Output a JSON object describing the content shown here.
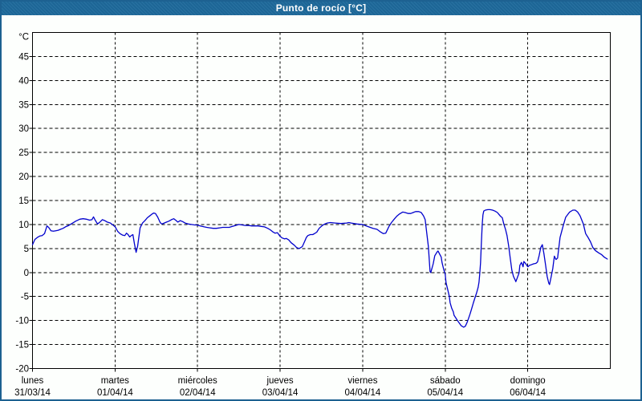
{
  "window": {
    "title": "Punto de rocío [°C]"
  },
  "colors": {
    "frame_border": "#1d6191",
    "titlebar_bg": "#1e6a9c",
    "titlebar_text": "#ffffff",
    "plot_bg": "#fdfffd",
    "grid": "#000000",
    "line": "#0000cd"
  },
  "chart_data": {
    "type": "line",
    "title": "Punto de rocío [°C]",
    "grid": true,
    "legend_position": "none",
    "y_axis": {
      "label": "°C",
      "min": -20,
      "max": 50,
      "tick_step": 5,
      "tick_labels": [
        45,
        40,
        35,
        30,
        25,
        20,
        15,
        10,
        5,
        0,
        -5,
        -10,
        -15,
        -20
      ]
    },
    "x_axis": {
      "unit": "days_from_monday",
      "range": [
        0,
        7
      ],
      "day_ticks": [
        {
          "name": "lunes",
          "date": "31/03/14"
        },
        {
          "name": "martes",
          "date": "01/04/14"
        },
        {
          "name": "miércoles",
          "date": "02/04/14"
        },
        {
          "name": "jueves",
          "date": "03/04/14"
        },
        {
          "name": "viernes",
          "date": "04/04/14"
        },
        {
          "name": "sábado",
          "date": "05/04/14"
        },
        {
          "name": "domingo",
          "date": "06/04/14"
        }
      ]
    },
    "series": [
      {
        "name": "Punto de rocío",
        "color": "#0000cd",
        "points": [
          [
            0,
            5.8
          ],
          [
            0.029,
            6.9
          ],
          [
            0.058,
            7.3
          ],
          [
            0.088,
            7.6
          ],
          [
            0.117,
            7.7
          ],
          [
            0.146,
            8.1
          ],
          [
            0.175,
            9.7
          ],
          [
            0.195,
            9.4
          ],
          [
            0.224,
            8.7
          ],
          [
            0.253,
            8.6
          ],
          [
            0.282,
            8.7
          ],
          [
            0.311,
            8.8
          ],
          [
            0.34,
            9.0
          ],
          [
            0.37,
            9.2
          ],
          [
            0.399,
            9.5
          ],
          [
            0.438,
            9.8
          ],
          [
            0.477,
            10.2
          ],
          [
            0.525,
            10.7
          ],
          [
            0.574,
            11.1
          ],
          [
            0.613,
            11.2
          ],
          [
            0.652,
            11.1
          ],
          [
            0.691,
            10.9
          ],
          [
            0.72,
            11.0
          ],
          [
            0.739,
            11.6
          ],
          [
            0.759,
            10.9
          ],
          [
            0.788,
            10.1
          ],
          [
            0.817,
            10.5
          ],
          [
            0.846,
            11.0
          ],
          [
            0.876,
            10.8
          ],
          [
            0.905,
            10.5
          ],
          [
            0.944,
            10.3
          ],
          [
            0.973,
            9.9
          ],
          [
            1.002,
            9.5
          ],
          [
            1.031,
            8.6
          ],
          [
            1.06,
            8.1
          ],
          [
            1.09,
            7.8
          ],
          [
            1.119,
            7.7
          ],
          [
            1.138,
            8.2
          ],
          [
            1.158,
            7.9
          ],
          [
            1.177,
            7.4
          ],
          [
            1.197,
            7.7
          ],
          [
            1.216,
            7.9
          ],
          [
            1.235,
            6.0
          ],
          [
            1.255,
            4.2
          ],
          [
            1.274,
            5.5
          ],
          [
            1.304,
            9.3
          ],
          [
            1.333,
            10.3
          ],
          [
            1.362,
            10.8
          ],
          [
            1.391,
            11.4
          ],
          [
            1.42,
            11.8
          ],
          [
            1.45,
            12.2
          ],
          [
            1.469,
            12.4
          ],
          [
            1.489,
            12.3
          ],
          [
            1.518,
            11.5
          ],
          [
            1.547,
            10.4
          ],
          [
            1.566,
            10.1
          ],
          [
            1.595,
            10.3
          ],
          [
            1.625,
            10.5
          ],
          [
            1.654,
            10.7
          ],
          [
            1.683,
            11.0
          ],
          [
            1.712,
            11.2
          ],
          [
            1.741,
            10.8
          ],
          [
            1.761,
            10.5
          ],
          [
            1.79,
            10.8
          ],
          [
            1.819,
            10.6
          ],
          [
            1.848,
            10.3
          ],
          [
            1.887,
            10.1
          ],
          [
            1.926,
            10.0
          ],
          [
            1.965,
            9.9
          ],
          [
            1.994,
            9.9
          ],
          [
            2.033,
            9.7
          ],
          [
            2.082,
            9.5
          ],
          [
            2.111,
            9.4
          ],
          [
            2.15,
            9.3
          ],
          [
            2.189,
            9.2
          ],
          [
            2.228,
            9.2
          ],
          [
            2.267,
            9.3
          ],
          [
            2.305,
            9.4
          ],
          [
            2.344,
            9.4
          ],
          [
            2.383,
            9.4
          ],
          [
            2.422,
            9.6
          ],
          [
            2.461,
            9.8
          ],
          [
            2.5,
            10.0
          ],
          [
            2.539,
            9.9
          ],
          [
            2.578,
            9.8
          ],
          [
            2.617,
            9.8
          ],
          [
            2.656,
            9.7
          ],
          [
            2.695,
            9.7
          ],
          [
            2.733,
            9.7
          ],
          [
            2.772,
            9.6
          ],
          [
            2.811,
            9.5
          ],
          [
            2.85,
            9.2
          ],
          [
            2.88,
            8.9
          ],
          [
            2.909,
            8.5
          ],
          [
            2.938,
            8.2
          ],
          [
            2.967,
            8.3
          ],
          [
            2.996,
            7.6
          ],
          [
            3.025,
            7.2
          ],
          [
            3.055,
            7.0
          ],
          [
            3.074,
            7.1
          ],
          [
            3.103,
            6.8
          ],
          [
            3.133,
            6.2
          ],
          [
            3.171,
            5.7
          ],
          [
            3.2,
            5.2
          ],
          [
            3.23,
            5.0
          ],
          [
            3.269,
            5.4
          ],
          [
            3.298,
            6.5
          ],
          [
            3.317,
            7.3
          ],
          [
            3.337,
            7.7
          ],
          [
            3.366,
            7.9
          ],
          [
            3.395,
            7.9
          ],
          [
            3.415,
            8.1
          ],
          [
            3.444,
            8.4
          ],
          [
            3.473,
            9.2
          ],
          [
            3.512,
            9.8
          ],
          [
            3.541,
            10.1
          ],
          [
            3.57,
            10.3
          ],
          [
            3.609,
            10.4
          ],
          [
            3.668,
            10.3
          ],
          [
            3.736,
            10.2
          ],
          [
            3.804,
            10.3
          ],
          [
            3.833,
            10.4
          ],
          [
            3.862,
            10.3
          ],
          [
            3.93,
            10.1
          ],
          [
            3.998,
            10.0
          ],
          [
            4.057,
            9.6
          ],
          [
            4.125,
            9.2
          ],
          [
            4.173,
            9.0
          ],
          [
            4.212,
            8.5
          ],
          [
            4.251,
            8.1
          ],
          [
            4.28,
            8.2
          ],
          [
            4.319,
            9.6
          ],
          [
            4.349,
            10.4
          ],
          [
            4.387,
            11.2
          ],
          [
            4.417,
            11.8
          ],
          [
            4.446,
            12.2
          ],
          [
            4.485,
            12.6
          ],
          [
            4.514,
            12.5
          ],
          [
            4.553,
            12.3
          ],
          [
            4.582,
            12.3
          ],
          [
            4.611,
            12.5
          ],
          [
            4.641,
            12.7
          ],
          [
            4.679,
            12.7
          ],
          [
            4.709,
            12.5
          ],
          [
            4.738,
            11.8
          ],
          [
            4.757,
            11.0
          ],
          [
            4.777,
            8.2
          ],
          [
            4.796,
            5.4
          ],
          [
            4.816,
            0.2
          ],
          [
            4.825,
            0.0
          ],
          [
            4.854,
            1.8
          ],
          [
            4.874,
            3.5
          ],
          [
            4.903,
            4.3
          ],
          [
            4.913,
            4.5
          ],
          [
            4.952,
            3.2
          ],
          [
            4.961,
            2.1
          ],
          [
            4.981,
            0.7
          ],
          [
            5.0,
            -0.4
          ],
          [
            5.01,
            -2.1
          ],
          [
            5.029,
            -3.5
          ],
          [
            5.049,
            -4.9
          ],
          [
            5.059,
            -6.3
          ],
          [
            5.078,
            -7.4
          ],
          [
            5.098,
            -8.2
          ],
          [
            5.107,
            -8.9
          ],
          [
            5.127,
            -9.4
          ],
          [
            5.156,
            -10.2
          ],
          [
            5.195,
            -11.1
          ],
          [
            5.224,
            -11.4
          ],
          [
            5.243,
            -11.2
          ],
          [
            5.263,
            -10.5
          ],
          [
            5.282,
            -9.6
          ],
          [
            5.302,
            -8.6
          ],
          [
            5.321,
            -7.5
          ],
          [
            5.341,
            -6.3
          ],
          [
            5.36,
            -5.3
          ],
          [
            5.379,
            -4.3
          ],
          [
            5.399,
            -3.1
          ],
          [
            5.409,
            -2.0
          ],
          [
            5.418,
            -0.3
          ],
          [
            5.428,
            2.0
          ],
          [
            5.438,
            6.0
          ],
          [
            5.448,
            10.0
          ],
          [
            5.457,
            12.0
          ],
          [
            5.467,
            12.8
          ],
          [
            5.486,
            13.0
          ],
          [
            5.516,
            13.1
          ],
          [
            5.545,
            13.1
          ],
          [
            5.574,
            13.0
          ],
          [
            5.603,
            12.8
          ],
          [
            5.632,
            12.5
          ],
          [
            5.652,
            12.1
          ],
          [
            5.671,
            11.7
          ],
          [
            5.691,
            11.4
          ],
          [
            5.71,
            10.1
          ],
          [
            5.73,
            9.0
          ],
          [
            5.749,
            7.7
          ],
          [
            5.768,
            5.6
          ],
          [
            5.788,
            3.0
          ],
          [
            5.807,
            0.5
          ],
          [
            5.827,
            -0.8
          ],
          [
            5.846,
            -1.5
          ],
          [
            5.856,
            -1.9
          ],
          [
            5.875,
            -1.0
          ],
          [
            5.895,
            -0.1
          ],
          [
            5.904,
            1.5
          ],
          [
            5.924,
            2.1
          ],
          [
            5.943,
            1.2
          ],
          [
            5.953,
            2.3
          ],
          [
            5.972,
            1.9
          ],
          [
            5.992,
            1.4
          ],
          [
            6.002,
            1.2
          ],
          [
            6.021,
            1.5
          ],
          [
            6.04,
            1.6
          ],
          [
            6.07,
            1.8
          ],
          [
            6.099,
            1.9
          ],
          [
            6.118,
            2.2
          ],
          [
            6.138,
            3.5
          ],
          [
            6.157,
            5.2
          ],
          [
            6.177,
            5.8
          ],
          [
            6.196,
            3.9
          ],
          [
            6.216,
            1.5
          ],
          [
            6.235,
            -0.8
          ],
          [
            6.254,
            -2.2
          ],
          [
            6.264,
            -2.5
          ],
          [
            6.284,
            -0.8
          ],
          [
            6.303,
            0.8
          ],
          [
            6.322,
            3.4
          ],
          [
            6.342,
            2.7
          ],
          [
            6.361,
            3.0
          ],
          [
            6.391,
            7.3
          ],
          [
            6.43,
            9.8
          ],
          [
            6.459,
            11.5
          ],
          [
            6.507,
            12.6
          ],
          [
            6.546,
            13.0
          ],
          [
            6.575,
            13.0
          ],
          [
            6.604,
            12.6
          ],
          [
            6.634,
            11.8
          ],
          [
            6.673,
            10.1
          ],
          [
            6.702,
            8.1
          ],
          [
            6.731,
            7.3
          ],
          [
            6.76,
            6.4
          ],
          [
            6.789,
            5.2
          ],
          [
            6.818,
            4.6
          ],
          [
            6.857,
            4.1
          ],
          [
            6.896,
            3.7
          ],
          [
            6.926,
            3.2
          ],
          [
            6.964,
            2.8
          ]
        ]
      }
    ]
  }
}
